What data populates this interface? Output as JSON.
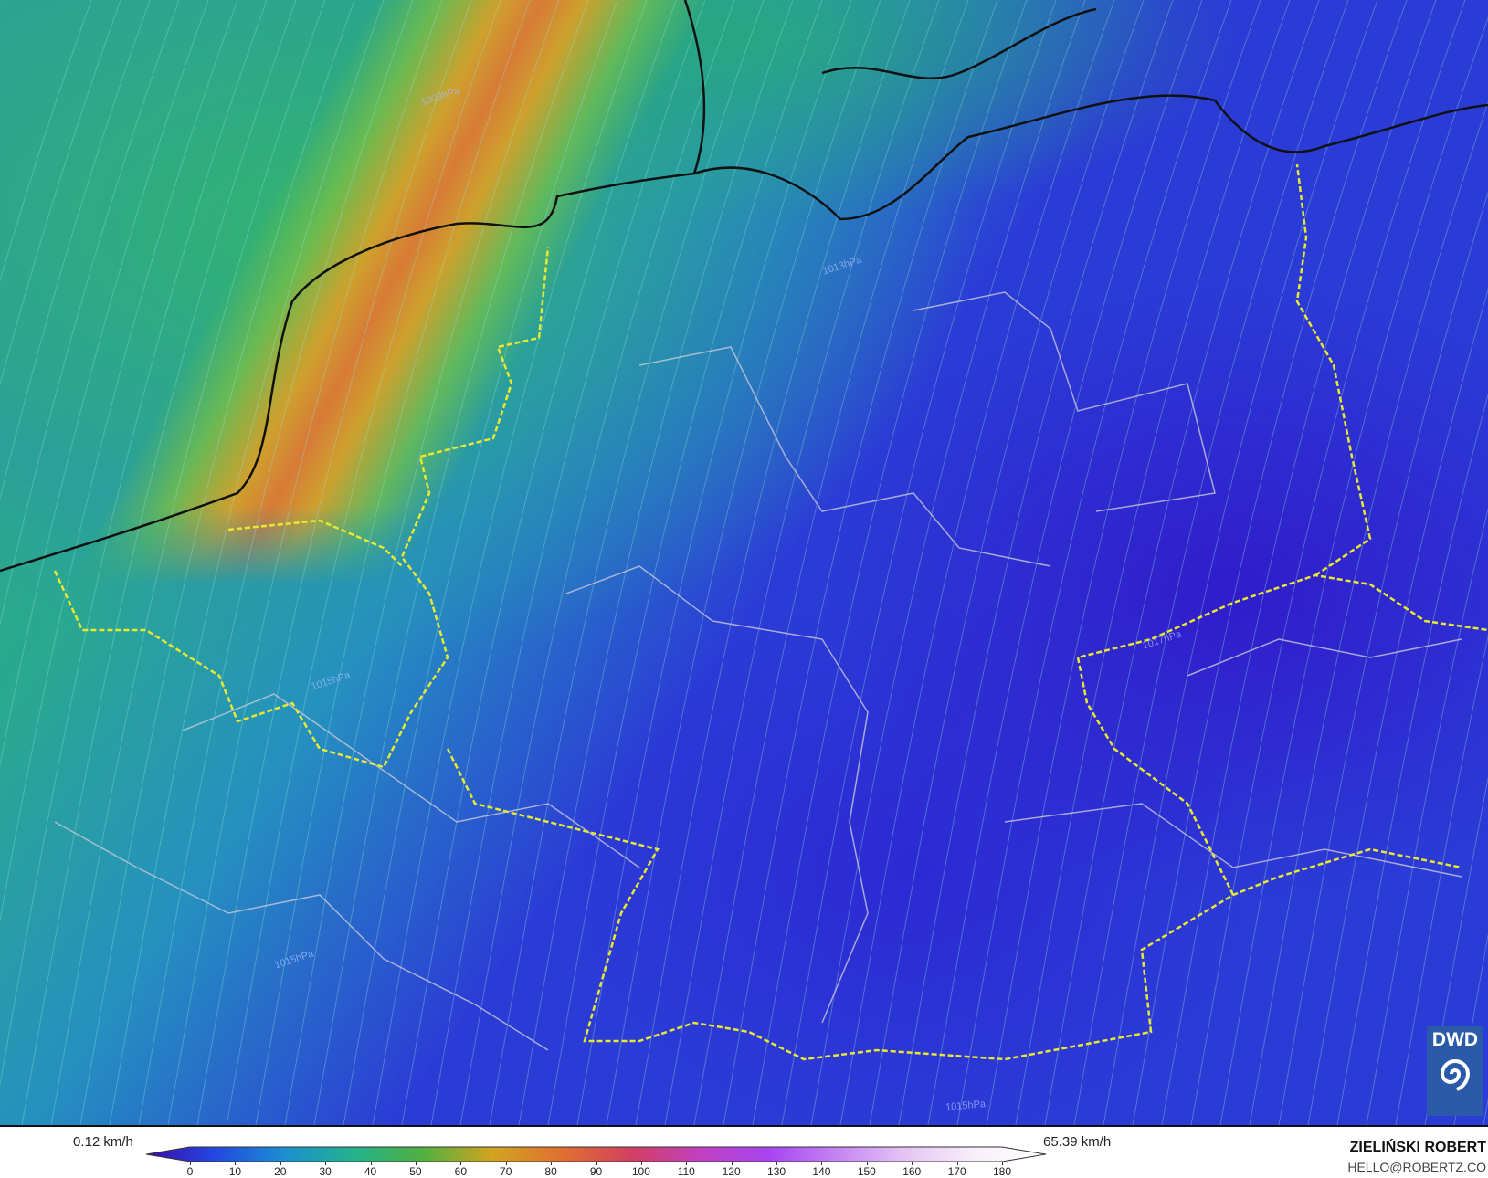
{
  "map": {
    "isobar_labels": [
      "1009hPa",
      "1013hPa",
      "1015hPa",
      "1015hPa",
      "1017hPa",
      "1015hPa"
    ],
    "logo": "DWD"
  },
  "legend": {
    "min_label": "0.12 km/h",
    "max_label": "65.39 km/h",
    "ticks": [
      "0",
      "10",
      "20",
      "30",
      "40",
      "50",
      "60",
      "70",
      "80",
      "90",
      "100",
      "110",
      "120",
      "130",
      "140",
      "150",
      "160",
      "170",
      "180"
    ],
    "range": [
      0,
      180
    ],
    "colors": [
      "#3a0ca8",
      "#2348e0",
      "#1c8fd0",
      "#22b28c",
      "#52b040",
      "#d2a420",
      "#e07030",
      "#d24060",
      "#c040c0",
      "#a844f2",
      "#c486f2",
      "#e6c6f4",
      "#f8f0fa",
      "#ffffff"
    ]
  },
  "credits": {
    "author": "ZIELIŃSKI ROBERT",
    "email": "HELLO@ROBERTZ.CO"
  }
}
